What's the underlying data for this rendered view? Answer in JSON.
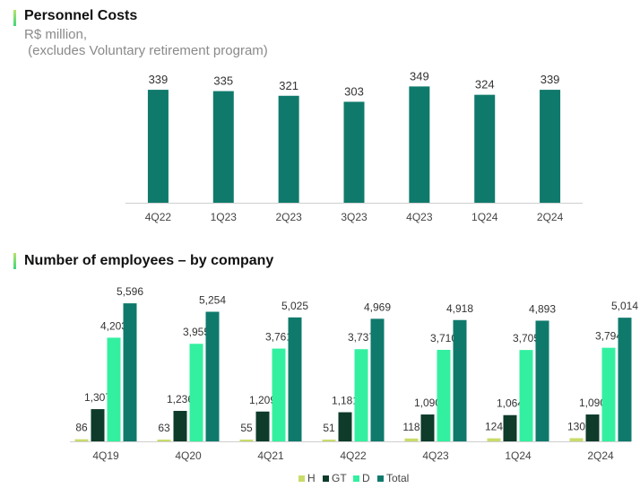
{
  "top": {
    "title": "Personnel Costs",
    "subtitle_line1": "R$ million,",
    "subtitle_line2": " (excludes Voluntary retirement program)"
  },
  "bottom": {
    "title": "Number of employees – by company"
  },
  "colors": {
    "teal": "#0f7a6c",
    "H": "#c8dc6a",
    "GT": "#0e3b2a",
    "D": "#33f0a0",
    "Total": "#0f7a6c",
    "accent": "#6ad96a"
  },
  "chart_data": [
    {
      "type": "bar",
      "title": "Personnel Costs",
      "ylabel": "R$ million",
      "categories": [
        "4Q22",
        "1Q23",
        "2Q23",
        "3Q23",
        "4Q23",
        "1Q24",
        "2Q24"
      ],
      "values": [
        339,
        335,
        321,
        303,
        349,
        324,
        339
      ],
      "ylim": [
        0,
        350
      ]
    },
    {
      "type": "bar",
      "title": "Number of employees – by company",
      "categories": [
        "4Q19",
        "4Q20",
        "4Q21",
        "4Q22",
        "4Q23",
        "1Q24",
        "2Q24"
      ],
      "ylim": [
        0,
        5600
      ],
      "series": [
        {
          "name": "H",
          "values": [
            86,
            63,
            55,
            51,
            118,
            124,
            130
          ]
        },
        {
          "name": "GT",
          "values": [
            1307,
            1236,
            1209,
            1181,
            1090,
            1064,
            1090
          ]
        },
        {
          "name": "D",
          "values": [
            4203,
            3955,
            3761,
            3737,
            3710,
            3705,
            3794
          ]
        },
        {
          "name": "Total",
          "values": [
            5596,
            5254,
            5025,
            4969,
            4918,
            4893,
            5014
          ]
        }
      ],
      "legend": [
        "H",
        "GT",
        "D",
        "Total"
      ]
    }
  ]
}
